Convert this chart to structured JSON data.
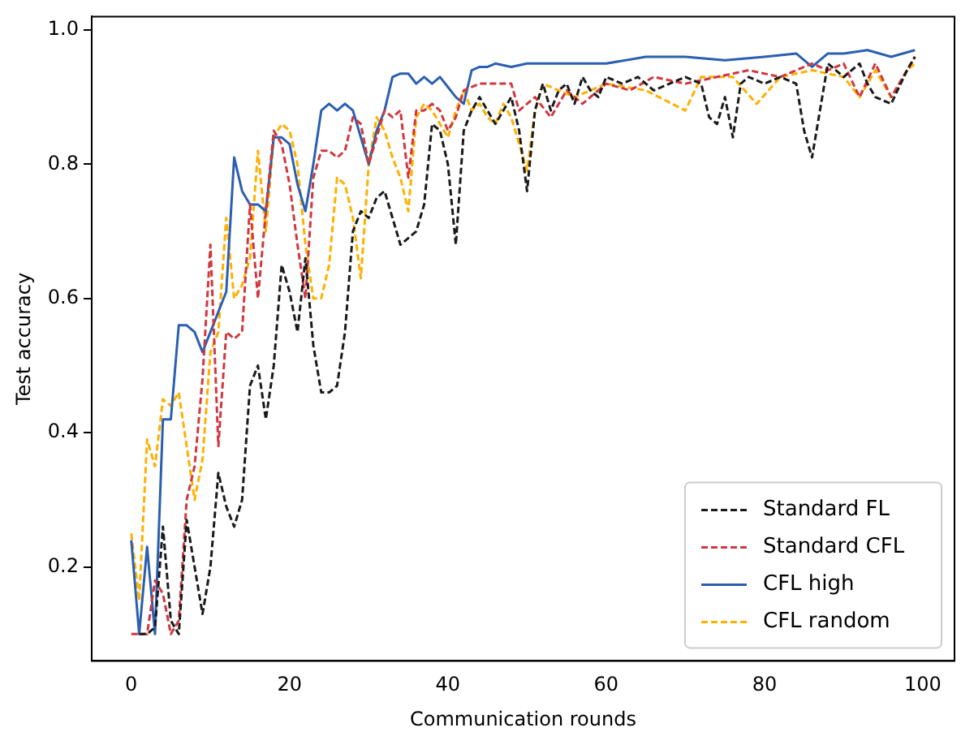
{
  "chart_data": {
    "type": "line",
    "xlabel": "Communication rounds",
    "ylabel": "Test accuracy",
    "legend": "bottom right",
    "grid": false,
    "marker": "none",
    "xlim": [
      -5,
      104
    ],
    "xticks": [
      0,
      20,
      40,
      60,
      80,
      100
    ],
    "ylim": [
      0.06,
      1.02
    ],
    "yticks": [
      0.2,
      0.4,
      0.6,
      0.8,
      {
        "value": 1,
        "label": "1.0"
      }
    ],
    "series": [
      {
        "name": "Standard FL",
        "color": "#1a1a1a",
        "line_style": "dashed",
        "x": [
          1,
          2,
          3,
          4,
          5,
          6,
          7,
          8,
          9,
          10,
          11,
          12,
          13,
          14,
          15,
          16,
          17,
          18,
          19,
          20,
          21,
          22,
          23,
          24,
          25,
          26,
          27,
          28,
          29,
          30,
          31,
          32,
          33,
          34,
          35,
          36,
          37,
          38,
          39,
          40,
          41,
          42,
          43,
          44,
          45,
          46,
          47,
          48,
          49,
          50,
          51,
          52,
          53,
          54,
          55,
          56,
          57,
          58,
          59,
          60,
          62,
          64,
          66,
          68,
          70,
          72,
          73,
          74,
          75,
          76,
          77,
          78,
          80,
          82,
          84,
          85,
          86,
          87,
          88,
          90,
          92,
          93,
          94,
          96,
          98,
          99
        ],
        "values": [
          0.1,
          0.1,
          0.11,
          0.26,
          0.12,
          0.1,
          0.27,
          0.2,
          0.13,
          0.2,
          0.34,
          0.29,
          0.26,
          0.3,
          0.47,
          0.5,
          0.42,
          0.5,
          0.65,
          0.61,
          0.55,
          0.66,
          0.53,
          0.46,
          0.46,
          0.47,
          0.55,
          0.7,
          0.73,
          0.72,
          0.75,
          0.76,
          0.72,
          0.68,
          0.69,
          0.7,
          0.74,
          0.86,
          0.85,
          0.8,
          0.68,
          0.85,
          0.88,
          0.9,
          0.88,
          0.86,
          0.88,
          0.9,
          0.85,
          0.76,
          0.88,
          0.92,
          0.88,
          0.91,
          0.92,
          0.89,
          0.93,
          0.91,
          0.9,
          0.93,
          0.92,
          0.93,
          0.91,
          0.92,
          0.93,
          0.92,
          0.87,
          0.86,
          0.9,
          0.84,
          0.92,
          0.93,
          0.92,
          0.93,
          0.92,
          0.85,
          0.81,
          0.88,
          0.95,
          0.93,
          0.95,
          0.92,
          0.9,
          0.89,
          0.94,
          0.96
        ]
      },
      {
        "name": "Standard CFL",
        "color": "#d0383f",
        "line_style": "dashed",
        "x": [
          0,
          1,
          2,
          3,
          4,
          5,
          6,
          7,
          8,
          9,
          10,
          11,
          12,
          13,
          14,
          15,
          16,
          17,
          18,
          19,
          20,
          21,
          22,
          23,
          24,
          25,
          26,
          27,
          28,
          29,
          30,
          31,
          32,
          33,
          34,
          35,
          36,
          37,
          38,
          39,
          40,
          41,
          42,
          44,
          46,
          48,
          49,
          50,
          51,
          53,
          55,
          57,
          60,
          63,
          66,
          70,
          74,
          78,
          82,
          86,
          88,
          90,
          92,
          94,
          96,
          98,
          99
        ],
        "values": [
          0.1,
          0.1,
          0.1,
          0.18,
          0.16,
          0.1,
          0.12,
          0.3,
          0.35,
          0.48,
          0.68,
          0.38,
          0.55,
          0.54,
          0.55,
          0.74,
          0.6,
          0.73,
          0.85,
          0.83,
          0.77,
          0.68,
          0.6,
          0.78,
          0.82,
          0.82,
          0.81,
          0.82,
          0.87,
          0.86,
          0.8,
          0.84,
          0.88,
          0.87,
          0.88,
          0.78,
          0.88,
          0.88,
          0.89,
          0.88,
          0.85,
          0.87,
          0.91,
          0.92,
          0.92,
          0.92,
          0.88,
          0.89,
          0.9,
          0.87,
          0.91,
          0.89,
          0.92,
          0.91,
          0.93,
          0.92,
          0.93,
          0.94,
          0.93,
          0.95,
          0.94,
          0.95,
          0.9,
          0.95,
          0.9,
          0.94,
          0.96
        ]
      },
      {
        "name": "CFL high",
        "color": "#2b5fb0",
        "line_style": "solid",
        "x": [
          0,
          1,
          2,
          3,
          4,
          5,
          6,
          7,
          8,
          9,
          10,
          11,
          12,
          13,
          14,
          15,
          16,
          17,
          18,
          19,
          20,
          21,
          22,
          23,
          24,
          25,
          26,
          27,
          28,
          29,
          30,
          31,
          32,
          33,
          34,
          35,
          36,
          37,
          38,
          39,
          40,
          41,
          42,
          43,
          44,
          45,
          46,
          48,
          50,
          55,
          60,
          65,
          70,
          75,
          80,
          84,
          86,
          88,
          90,
          93,
          96,
          99
        ],
        "values": [
          0.24,
          0.1,
          0.23,
          0.1,
          0.42,
          0.42,
          0.56,
          0.56,
          0.55,
          0.52,
          0.55,
          0.58,
          0.61,
          0.81,
          0.76,
          0.74,
          0.74,
          0.73,
          0.84,
          0.84,
          0.83,
          0.77,
          0.73,
          0.8,
          0.88,
          0.89,
          0.88,
          0.89,
          0.88,
          0.84,
          0.8,
          0.85,
          0.88,
          0.93,
          0.935,
          0.935,
          0.92,
          0.93,
          0.92,
          0.93,
          0.915,
          0.9,
          0.89,
          0.94,
          0.945,
          0.945,
          0.95,
          0.945,
          0.95,
          0.95,
          0.95,
          0.96,
          0.96,
          0.955,
          0.96,
          0.965,
          0.945,
          0.965,
          0.965,
          0.97,
          0.96,
          0.97
        ]
      },
      {
        "name": "CFL random",
        "color": "#ffb000",
        "line_style": "dashed",
        "x": [
          0,
          1,
          2,
          3,
          4,
          5,
          6,
          7,
          8,
          9,
          10,
          11,
          12,
          13,
          14,
          15,
          16,
          17,
          18,
          19,
          20,
          21,
          22,
          23,
          24,
          25,
          26,
          27,
          28,
          29,
          30,
          31,
          32,
          33,
          34,
          35,
          36,
          37,
          38,
          39,
          40,
          41,
          42,
          43,
          44,
          45,
          46,
          47,
          48,
          49,
          50,
          51,
          52,
          56,
          60,
          65,
          70,
          72,
          76,
          79,
          82,
          86,
          90,
          92,
          94,
          96,
          98,
          99
        ],
        "values": [
          0.25,
          0.15,
          0.39,
          0.35,
          0.45,
          0.44,
          0.46,
          0.38,
          0.3,
          0.36,
          0.52,
          0.55,
          0.72,
          0.6,
          0.62,
          0.66,
          0.82,
          0.7,
          0.84,
          0.86,
          0.85,
          0.8,
          0.68,
          0.6,
          0.6,
          0.65,
          0.78,
          0.77,
          0.72,
          0.63,
          0.8,
          0.87,
          0.85,
          0.81,
          0.78,
          0.73,
          0.87,
          0.89,
          0.88,
          0.86,
          0.84,
          0.88,
          0.91,
          0.88,
          0.89,
          0.87,
          0.86,
          0.89,
          0.87,
          0.83,
          0.79,
          0.88,
          0.92,
          0.9,
          0.92,
          0.91,
          0.88,
          0.93,
          0.93,
          0.89,
          0.93,
          0.94,
          0.93,
          0.9,
          0.94,
          0.9,
          0.94,
          0.95
        ]
      }
    ]
  }
}
